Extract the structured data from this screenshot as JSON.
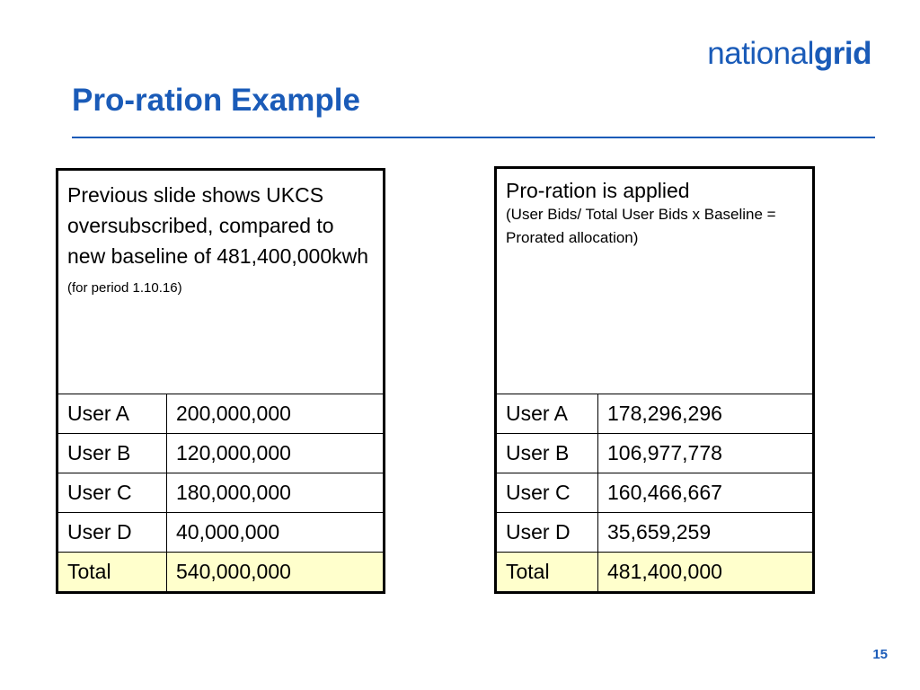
{
  "logo": {
    "light": "national",
    "bold": "grid"
  },
  "slide": {
    "title": "Pro-ration Example",
    "page_number": "15"
  },
  "left_table": {
    "intro": "Previous slide shows UKCS oversubscribed, compared to new baseline of 481,400,000kwh",
    "note": "(for period 1.10.16)",
    "rows": [
      {
        "label": "User A",
        "value": "200,000,000"
      },
      {
        "label": "User B",
        "value": "120,000,000"
      },
      {
        "label": "User C",
        "value": "180,000,000"
      },
      {
        "label": "User D",
        "value": "40,000,000"
      },
      {
        "label": "Total",
        "value": "540,000,000"
      }
    ]
  },
  "right_table": {
    "intro": "Pro-ration is applied",
    "note": "(User Bids/ Total User Bids x Baseline = Prorated allocation)",
    "rows": [
      {
        "label": "User A",
        "value": "178,296,296"
      },
      {
        "label": "User B",
        "value": "106,977,778"
      },
      {
        "label": "User C",
        "value": "160,466,667"
      },
      {
        "label": "User D",
        "value": "35,659,259"
      },
      {
        "label": "Total",
        "value": "481,400,000"
      }
    ]
  },
  "colors": {
    "brand_blue": "#1a5bb8",
    "total_row": "#ffffcc"
  }
}
